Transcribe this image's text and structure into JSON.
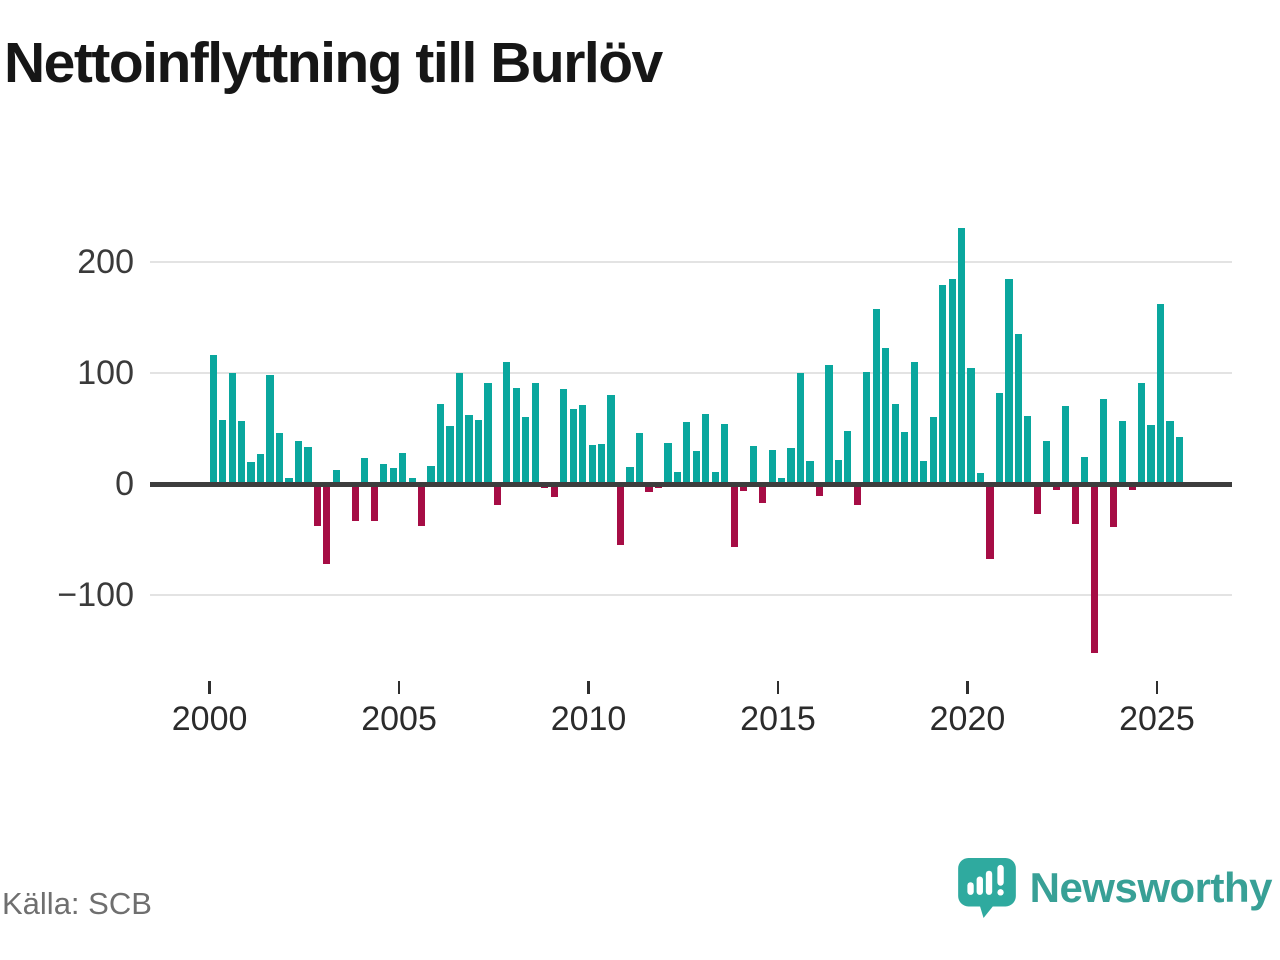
{
  "title": "Nettoinflyttning till Burlöv",
  "source": "Källa: SCB",
  "logo": {
    "wordmark": "Newsworthy"
  },
  "colors": {
    "positive": "#0aa79e",
    "negative": "#a60d45",
    "axis": "#3d3d3d",
    "grid": "#e3e3e3",
    "logo_bubble": "#2faa9f",
    "wordmark": "#38a096"
  },
  "y_axis": {
    "tick_values": [
      200,
      100,
      0,
      -100
    ],
    "tick_labels": [
      "200",
      "100",
      "0",
      "−100"
    ]
  },
  "x_axis": {
    "tick_labels": [
      "2000",
      "2005",
      "2010",
      "2015",
      "2020",
      "2025"
    ]
  },
  "chart_data": {
    "type": "bar",
    "title": "Nettoinflyttning till Burlöv",
    "frequency": "quarterly",
    "start_period": "2000Q1",
    "end_period": "2025Q3",
    "ylabel": "",
    "xlabel": "",
    "ylim": [
      -160,
      240
    ],
    "grid": "horizontal",
    "legend": "none",
    "series": [
      {
        "name": "Nettoinflyttning",
        "values": [
          116,
          58,
          100,
          57,
          20,
          27,
          98,
          46,
          5,
          39,
          33,
          -38,
          -72,
          13,
          0,
          -33,
          23,
          -33,
          18,
          14,
          28,
          5,
          -38,
          16,
          72,
          52,
          100,
          62,
          58,
          91,
          -19,
          110,
          86,
          60,
          91,
          -4,
          -12,
          85,
          67,
          71,
          35,
          36,
          80,
          -55,
          15,
          46,
          -7,
          -4,
          37,
          11,
          56,
          30,
          63,
          11,
          54,
          -57,
          -6,
          34,
          -17,
          31,
          5,
          32,
          100,
          21,
          -11,
          107,
          22,
          48,
          -19,
          101,
          157,
          122,
          72,
          47,
          110,
          21,
          60,
          179,
          184,
          230,
          104,
          10,
          -67,
          82,
          184,
          135,
          61,
          -27,
          39,
          -5,
          70,
          -36,
          24,
          -152,
          76,
          -39,
          57,
          -5,
          91,
          53,
          162,
          57,
          42
        ]
      }
    ]
  }
}
